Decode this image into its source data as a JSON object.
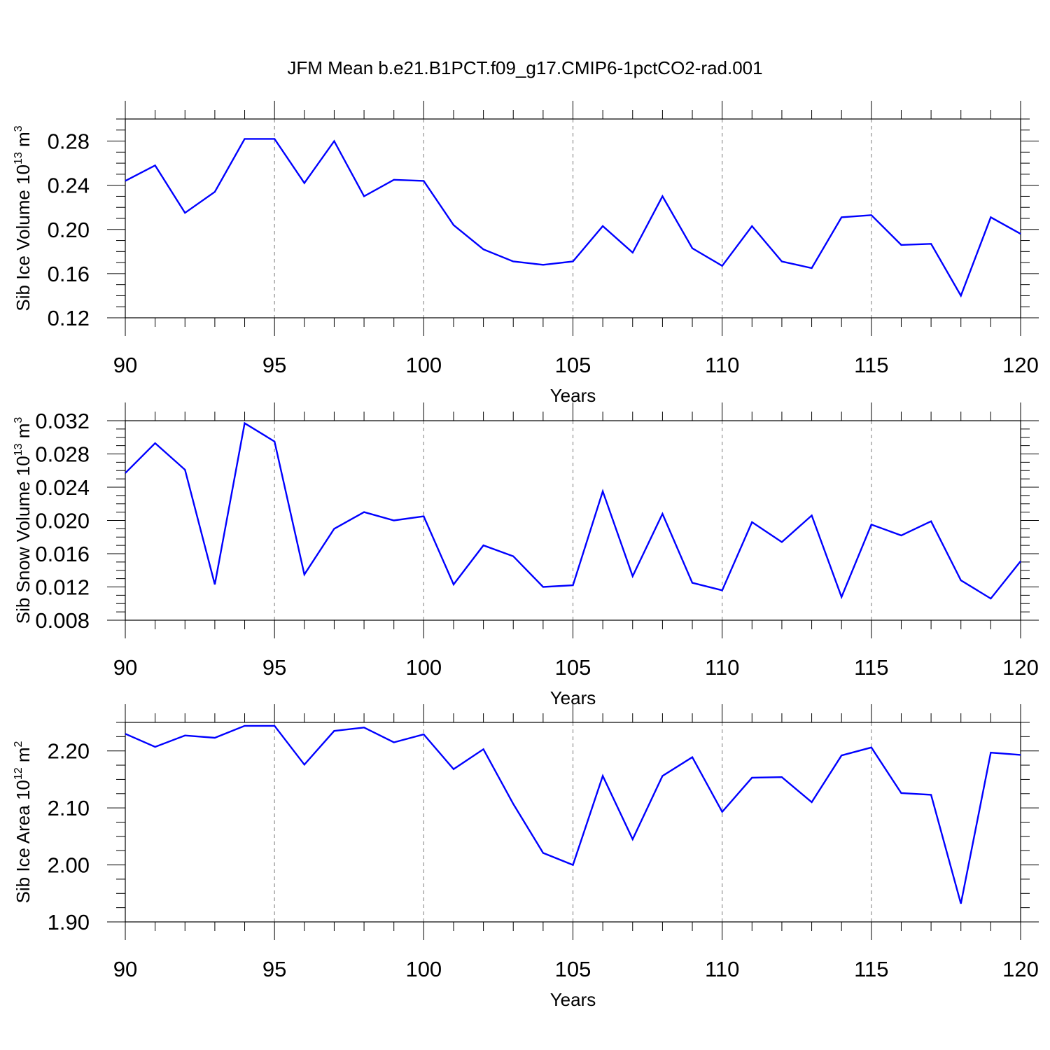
{
  "title": "JFM Mean b.e21.B1PCT.f09_g17.CMIP6-1pctCO2-rad.001",
  "chart_data": [
    {
      "type": "line",
      "xlabel": "Years",
      "ylabel": "Sib Ice Volume 10",
      "ylabel_exp": "13",
      "ylabel_unit": " m",
      "ylabel_unit_exp": "3",
      "xlim": [
        90,
        120
      ],
      "ylim": [
        0.12,
        0.3
      ],
      "xticks": [
        90,
        95,
        100,
        105,
        110,
        115,
        120
      ],
      "yticks": [
        0.12,
        0.16,
        0.2,
        0.24,
        0.28
      ],
      "ytick_labels": [
        "0.12",
        "0.16",
        "0.20",
        "0.24",
        "0.28"
      ],
      "vertical_grid": true,
      "line_color": "#0000ff",
      "x": [
        90,
        91,
        92,
        93,
        94,
        95,
        96,
        97,
        98,
        99,
        100,
        101,
        102,
        103,
        104,
        105,
        106,
        107,
        108,
        109,
        110,
        111,
        112,
        113,
        114,
        115,
        116,
        117,
        118,
        119,
        120
      ],
      "values": [
        0.244,
        0.258,
        0.215,
        0.234,
        0.282,
        0.282,
        0.242,
        0.28,
        0.23,
        0.245,
        0.244,
        0.204,
        0.182,
        0.171,
        0.168,
        0.171,
        0.203,
        0.179,
        0.23,
        0.183,
        0.167,
        0.203,
        0.171,
        0.165,
        0.211,
        0.213,
        0.186,
        0.187,
        0.14,
        0.211,
        0.196
      ]
    },
    {
      "type": "line",
      "xlabel": "Years",
      "ylabel": "Sib Snow Volume 10",
      "ylabel_exp": "13",
      "ylabel_unit": " m",
      "ylabel_unit_exp": "3",
      "xlim": [
        90,
        120
      ],
      "ylim": [
        0.008,
        0.032
      ],
      "xticks": [
        90,
        95,
        100,
        105,
        110,
        115,
        120
      ],
      "yticks": [
        0.008,
        0.012,
        0.016,
        0.02,
        0.024,
        0.028,
        0.032
      ],
      "ytick_labels": [
        "0.008",
        "0.012",
        "0.016",
        "0.020",
        "0.024",
        "0.028",
        "0.032"
      ],
      "vertical_grid": true,
      "line_color": "#0000ff",
      "x": [
        90,
        91,
        92,
        93,
        94,
        95,
        96,
        97,
        98,
        99,
        100,
        101,
        102,
        103,
        104,
        105,
        106,
        107,
        108,
        109,
        110,
        111,
        112,
        113,
        114,
        115,
        116,
        117,
        118,
        119,
        120
      ],
      "values": [
        0.0257,
        0.0293,
        0.0261,
        0.0123,
        0.0317,
        0.0295,
        0.0135,
        0.019,
        0.021,
        0.02,
        0.0205,
        0.0123,
        0.017,
        0.0157,
        0.012,
        0.0122,
        0.0235,
        0.0133,
        0.0208,
        0.0125,
        0.0116,
        0.0198,
        0.0174,
        0.0206,
        0.0108,
        0.0195,
        0.0182,
        0.0199,
        0.0128,
        0.0106,
        0.0151
      ]
    },
    {
      "type": "line",
      "xlabel": "Years",
      "ylabel": "Sib Ice Area 10",
      "ylabel_exp": "12",
      "ylabel_unit": " m",
      "ylabel_unit_exp": "2",
      "xlim": [
        90,
        120
      ],
      "ylim": [
        1.9,
        2.25
      ],
      "xticks": [
        90,
        95,
        100,
        105,
        110,
        115,
        120
      ],
      "yticks": [
        1.9,
        2.0,
        2.1,
        2.2
      ],
      "ytick_labels": [
        "1.90",
        "2.00",
        "2.10",
        "2.20"
      ],
      "vertical_grid": true,
      "line_color": "#0000ff",
      "x": [
        90,
        91,
        92,
        93,
        94,
        95,
        96,
        97,
        98,
        99,
        100,
        101,
        102,
        103,
        104,
        105,
        106,
        107,
        108,
        109,
        110,
        111,
        112,
        113,
        114,
        115,
        116,
        117,
        118,
        119,
        120
      ],
      "values": [
        2.23,
        2.207,
        2.227,
        2.223,
        2.244,
        2.244,
        2.176,
        2.235,
        2.241,
        2.215,
        2.229,
        2.168,
        2.203,
        2.107,
        2.021,
        2.0,
        2.156,
        2.045,
        2.156,
        2.189,
        2.093,
        2.153,
        2.154,
        2.11,
        2.192,
        2.206,
        2.126,
        2.123,
        1.932,
        2.197,
        2.193
      ]
    }
  ]
}
